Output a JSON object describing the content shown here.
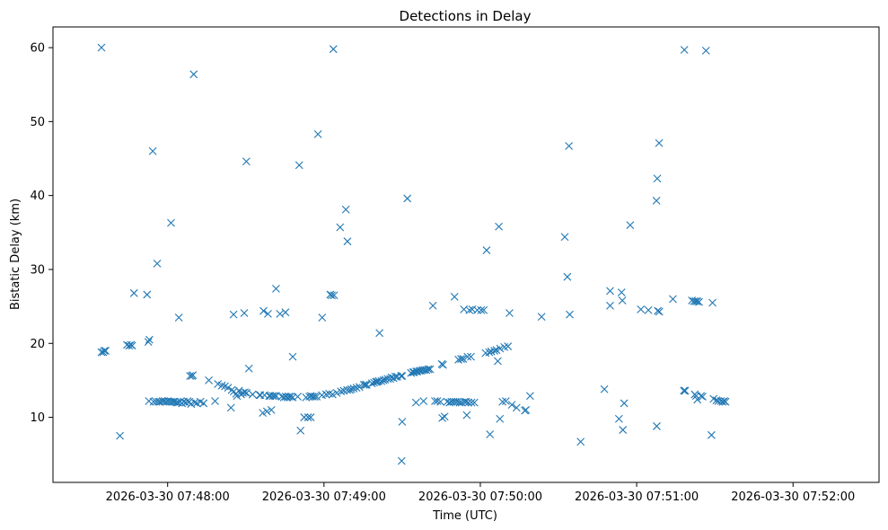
{
  "chart_data": {
    "type": "scatter",
    "title": "Detections in Delay",
    "xlabel": "Time (UTC)",
    "ylabel": "Bistatic Delay (km)",
    "marker": "x",
    "color": "#1f77b4",
    "x_unit": "seconds since 2026-03-30 07:47:00 UTC",
    "xlim": [
      16,
      333
    ],
    "ylim": [
      1.2,
      62.8
    ],
    "xticks": [
      {
        "value": 60,
        "label": "2026-03-30 07:48:00"
      },
      {
        "value": 120,
        "label": "2026-03-30 07:49:00"
      },
      {
        "value": 180,
        "label": "2026-03-30 07:50:00"
      },
      {
        "value": 240,
        "label": "2026-03-30 07:51:00"
      },
      {
        "value": 300,
        "label": "2026-03-30 07:52:00"
      }
    ],
    "yticks": [
      10,
      20,
      30,
      40,
      50,
      60
    ],
    "points": [
      [
        34.6,
        60
      ],
      [
        34.6,
        18.8
      ],
      [
        35.3,
        18.8
      ],
      [
        35.7,
        19
      ],
      [
        36.2,
        19
      ],
      [
        41.7,
        7.5
      ],
      [
        44.4,
        19.8
      ],
      [
        45.2,
        19.7
      ],
      [
        45.9,
        19.8
      ],
      [
        46.4,
        19.7
      ],
      [
        47.1,
        26.8
      ],
      [
        52.1,
        26.6
      ],
      [
        52.6,
        20.2
      ],
      [
        53,
        20.5
      ],
      [
        52.8,
        12.2
      ],
      [
        54.3,
        46
      ],
      [
        54.6,
        12.1
      ],
      [
        56,
        30.8
      ],
      [
        55.6,
        12.1
      ],
      [
        56.5,
        12.1
      ],
      [
        57.2,
        12.1
      ],
      [
        58,
        12.2
      ],
      [
        58.7,
        12.2
      ],
      [
        59.4,
        12.1
      ],
      [
        60.1,
        12.2
      ],
      [
        60.7,
        12.1
      ],
      [
        61.3,
        36.3
      ],
      [
        61.4,
        12.1
      ],
      [
        62.1,
        12.1
      ],
      [
        62.7,
        12.1
      ],
      [
        63.4,
        12
      ],
      [
        64.3,
        23.5
      ],
      [
        64.1,
        12
      ],
      [
        64.8,
        12.1
      ],
      [
        65.5,
        11.9
      ],
      [
        66.2,
        12.1
      ],
      [
        67,
        12
      ],
      [
        67.6,
        12.2
      ],
      [
        68.3,
        12.1
      ],
      [
        68.6,
        15.6
      ],
      [
        69.3,
        15.6
      ],
      [
        69.7,
        15.7
      ],
      [
        69,
        11.8
      ],
      [
        70,
        56.4
      ],
      [
        70.4,
        12
      ],
      [
        71.2,
        11.9
      ],
      [
        72.6,
        12.1
      ],
      [
        73.8,
        11.9
      ],
      [
        75.8,
        15
      ],
      [
        78.2,
        12.2
      ],
      [
        79.3,
        14.5
      ],
      [
        80.8,
        14.3
      ],
      [
        82,
        14.2
      ],
      [
        83.2,
        14
      ],
      [
        84.3,
        11.3
      ],
      [
        84.6,
        13.7
      ],
      [
        85.4,
        13.5
      ],
      [
        85.3,
        23.9
      ],
      [
        86.3,
        13.2
      ],
      [
        86.6,
        12.9
      ],
      [
        87.4,
        13.6
      ],
      [
        88.2,
        13.1
      ],
      [
        88.9,
        13.3
      ],
      [
        89.4,
        24.1
      ],
      [
        89.6,
        13.4
      ],
      [
        90.2,
        44.6
      ],
      [
        90.3,
        13.3
      ],
      [
        91.2,
        16.6
      ],
      [
        92.6,
        13.1
      ],
      [
        95.3,
        13
      ],
      [
        95.6,
        13
      ],
      [
        96.5,
        10.6
      ],
      [
        96.8,
        24.4
      ],
      [
        97.2,
        13
      ],
      [
        98.1,
        10.8
      ],
      [
        98.5,
        24
      ],
      [
        99,
        12.9
      ],
      [
        99.4,
        12.9
      ],
      [
        99.8,
        11
      ],
      [
        100.3,
        12.9
      ],
      [
        101,
        12.9
      ],
      [
        101.6,
        27.4
      ],
      [
        101.7,
        12.9
      ],
      [
        103.1,
        24
      ],
      [
        103.8,
        12.8
      ],
      [
        104.6,
        12.7
      ],
      [
        105.2,
        24.2
      ],
      [
        105.3,
        12.8
      ],
      [
        106,
        12.7
      ],
      [
        106.6,
        12.8
      ],
      [
        107.3,
        12.8
      ],
      [
        108,
        18.2
      ],
      [
        108,
        12.7
      ],
      [
        109.9,
        12.8
      ],
      [
        110.5,
        44.1
      ],
      [
        111,
        8.2
      ],
      [
        112.4,
        10
      ],
      [
        113.1,
        12.7
      ],
      [
        113.9,
        10
      ],
      [
        114.4,
        12.8
      ],
      [
        114.9,
        10
      ],
      [
        115,
        12.9
      ],
      [
        115.7,
        12.8
      ],
      [
        116.4,
        12.8
      ],
      [
        117.2,
        12.8
      ],
      [
        117.7,
        48.3
      ],
      [
        119.2,
        13
      ],
      [
        119.3,
        23.5
      ],
      [
        120.8,
        13.1
      ],
      [
        122,
        13.2
      ],
      [
        122.4,
        26.6
      ],
      [
        123,
        26.5
      ],
      [
        123.3,
        13.1
      ],
      [
        123.9,
        26.5
      ],
      [
        123.6,
        59.8
      ],
      [
        124.9,
        13.3
      ],
      [
        126.2,
        35.7
      ],
      [
        126.5,
        13.5
      ],
      [
        127.6,
        13.6
      ],
      [
        128.4,
        38.1
      ],
      [
        128.9,
        13.7
      ],
      [
        129,
        33.8
      ],
      [
        129.9,
        13.7
      ],
      [
        130.5,
        13.8
      ],
      [
        131.4,
        13.9
      ],
      [
        132.5,
        14
      ],
      [
        133.6,
        14.1
      ],
      [
        135.3,
        14.4
      ],
      [
        135.9,
        14.4
      ],
      [
        136.4,
        14.4
      ],
      [
        138.4,
        14.6
      ],
      [
        139.2,
        14.7
      ],
      [
        140,
        14.8
      ],
      [
        140.5,
        14.8
      ],
      [
        141,
        14.9
      ],
      [
        141.3,
        21.4
      ],
      [
        142,
        14.9
      ],
      [
        142.8,
        15
      ],
      [
        143.5,
        15.1
      ],
      [
        144.4,
        15.2
      ],
      [
        145.4,
        15.2
      ],
      [
        145.9,
        15.4
      ],
      [
        146.7,
        15.3
      ],
      [
        147.4,
        15.5
      ],
      [
        148.1,
        15.5
      ],
      [
        149.6,
        15.6
      ],
      [
        150,
        9.4
      ],
      [
        150,
        15.6
      ],
      [
        149.8,
        4.1
      ],
      [
        152,
        39.6
      ],
      [
        153.4,
        16
      ],
      [
        154.2,
        16.1
      ],
      [
        154.6,
        16.1
      ],
      [
        155.3,
        12
      ],
      [
        155.4,
        16.2
      ],
      [
        155.9,
        16.2
      ],
      [
        156.7,
        16.3
      ],
      [
        157.3,
        16.3
      ],
      [
        157.9,
        16.4
      ],
      [
        158.2,
        12.2
      ],
      [
        158.6,
        16.4
      ],
      [
        159.3,
        16.4
      ],
      [
        160,
        16.5
      ],
      [
        160.7,
        16.5
      ],
      [
        161.8,
        25.1
      ],
      [
        162.6,
        12.2
      ],
      [
        163.5,
        12.2
      ],
      [
        164.7,
        12.1
      ],
      [
        165.2,
        17.2
      ],
      [
        165.7,
        17.1
      ],
      [
        165.4,
        9.9
      ],
      [
        166.3,
        10.1
      ],
      [
        167.3,
        12.1
      ],
      [
        168.2,
        12
      ],
      [
        168.9,
        12.1
      ],
      [
        169.7,
        12.1
      ],
      [
        170.1,
        26.3
      ],
      [
        170.5,
        12.1
      ],
      [
        171.3,
        12.1
      ],
      [
        171.6,
        17.8
      ],
      [
        172.1,
        12
      ],
      [
        172.6,
        17.9
      ],
      [
        172.9,
        12
      ],
      [
        173.4,
        17.9
      ],
      [
        173.7,
        24.6
      ],
      [
        173.9,
        12.1
      ],
      [
        174.6,
        12.1
      ],
      [
        174.8,
        10.3
      ],
      [
        175.1,
        18.2
      ],
      [
        175.4,
        12
      ],
      [
        175.8,
        24.5
      ],
      [
        176.4,
        18.2
      ],
      [
        176.6,
        12
      ],
      [
        176.9,
        24.6
      ],
      [
        177.7,
        12
      ],
      [
        178.8,
        24.5
      ],
      [
        180.3,
        24.5
      ],
      [
        181.3,
        24.5
      ],
      [
        182,
        18.7
      ],
      [
        182.4,
        32.6
      ],
      [
        183.4,
        18.8
      ],
      [
        183.7,
        7.7
      ],
      [
        184.2,
        18.9
      ],
      [
        185.4,
        19
      ],
      [
        186.2,
        19.1
      ],
      [
        186.7,
        17.6
      ],
      [
        187.1,
        35.8
      ],
      [
        187.5,
        9.8
      ],
      [
        187.6,
        19.3
      ],
      [
        188.5,
        12.1
      ],
      [
        189.2,
        19.5
      ],
      [
        189.8,
        12.2
      ],
      [
        190.6,
        19.6
      ],
      [
        191.2,
        24.1
      ],
      [
        192.1,
        11.7
      ],
      [
        193.9,
        11.3
      ],
      [
        197.1,
        10.9
      ],
      [
        197.5,
        11
      ],
      [
        199.1,
        12.9
      ],
      [
        203.5,
        23.6
      ],
      [
        212.4,
        34.4
      ],
      [
        213.4,
        29
      ],
      [
        214,
        46.7
      ],
      [
        214.3,
        23.9
      ],
      [
        218.5,
        6.7
      ],
      [
        227.6,
        13.8
      ],
      [
        229.8,
        27.1
      ],
      [
        229.8,
        25.1
      ],
      [
        234.2,
        26.9
      ],
      [
        234.5,
        25.8
      ],
      [
        233.2,
        9.8
      ],
      [
        234.7,
        8.3
      ],
      [
        235.2,
        11.9
      ],
      [
        237.5,
        36
      ],
      [
        241.6,
        24.6
      ],
      [
        244.5,
        24.5
      ],
      [
        247.6,
        39.3
      ],
      [
        247.9,
        42.3
      ],
      [
        248.6,
        47.1
      ],
      [
        248.1,
        24.4
      ],
      [
        248.7,
        24.3
      ],
      [
        247.7,
        8.8
      ],
      [
        253.9,
        26
      ],
      [
        258.1,
        13.6
      ],
      [
        258.6,
        13.6
      ],
      [
        258.3,
        59.7
      ],
      [
        261.2,
        25.8
      ],
      [
        262,
        25.7
      ],
      [
        262.7,
        25.7
      ],
      [
        263.3,
        25.7
      ],
      [
        263.9,
        25.6
      ],
      [
        262.3,
        13.1
      ],
      [
        262.8,
        12.9
      ],
      [
        263.3,
        12.4
      ],
      [
        264.7,
        12.9
      ],
      [
        265.3,
        12.8
      ],
      [
        266.6,
        59.6
      ],
      [
        269.1,
        25.5
      ],
      [
        268.7,
        7.6
      ],
      [
        269.5,
        12.5
      ],
      [
        270.6,
        12.3
      ],
      [
        271.3,
        12.2
      ],
      [
        272.3,
        12.2
      ],
      [
        273,
        12.1
      ],
      [
        273.6,
        12.2
      ],
      [
        274.1,
        12.1
      ]
    ]
  }
}
